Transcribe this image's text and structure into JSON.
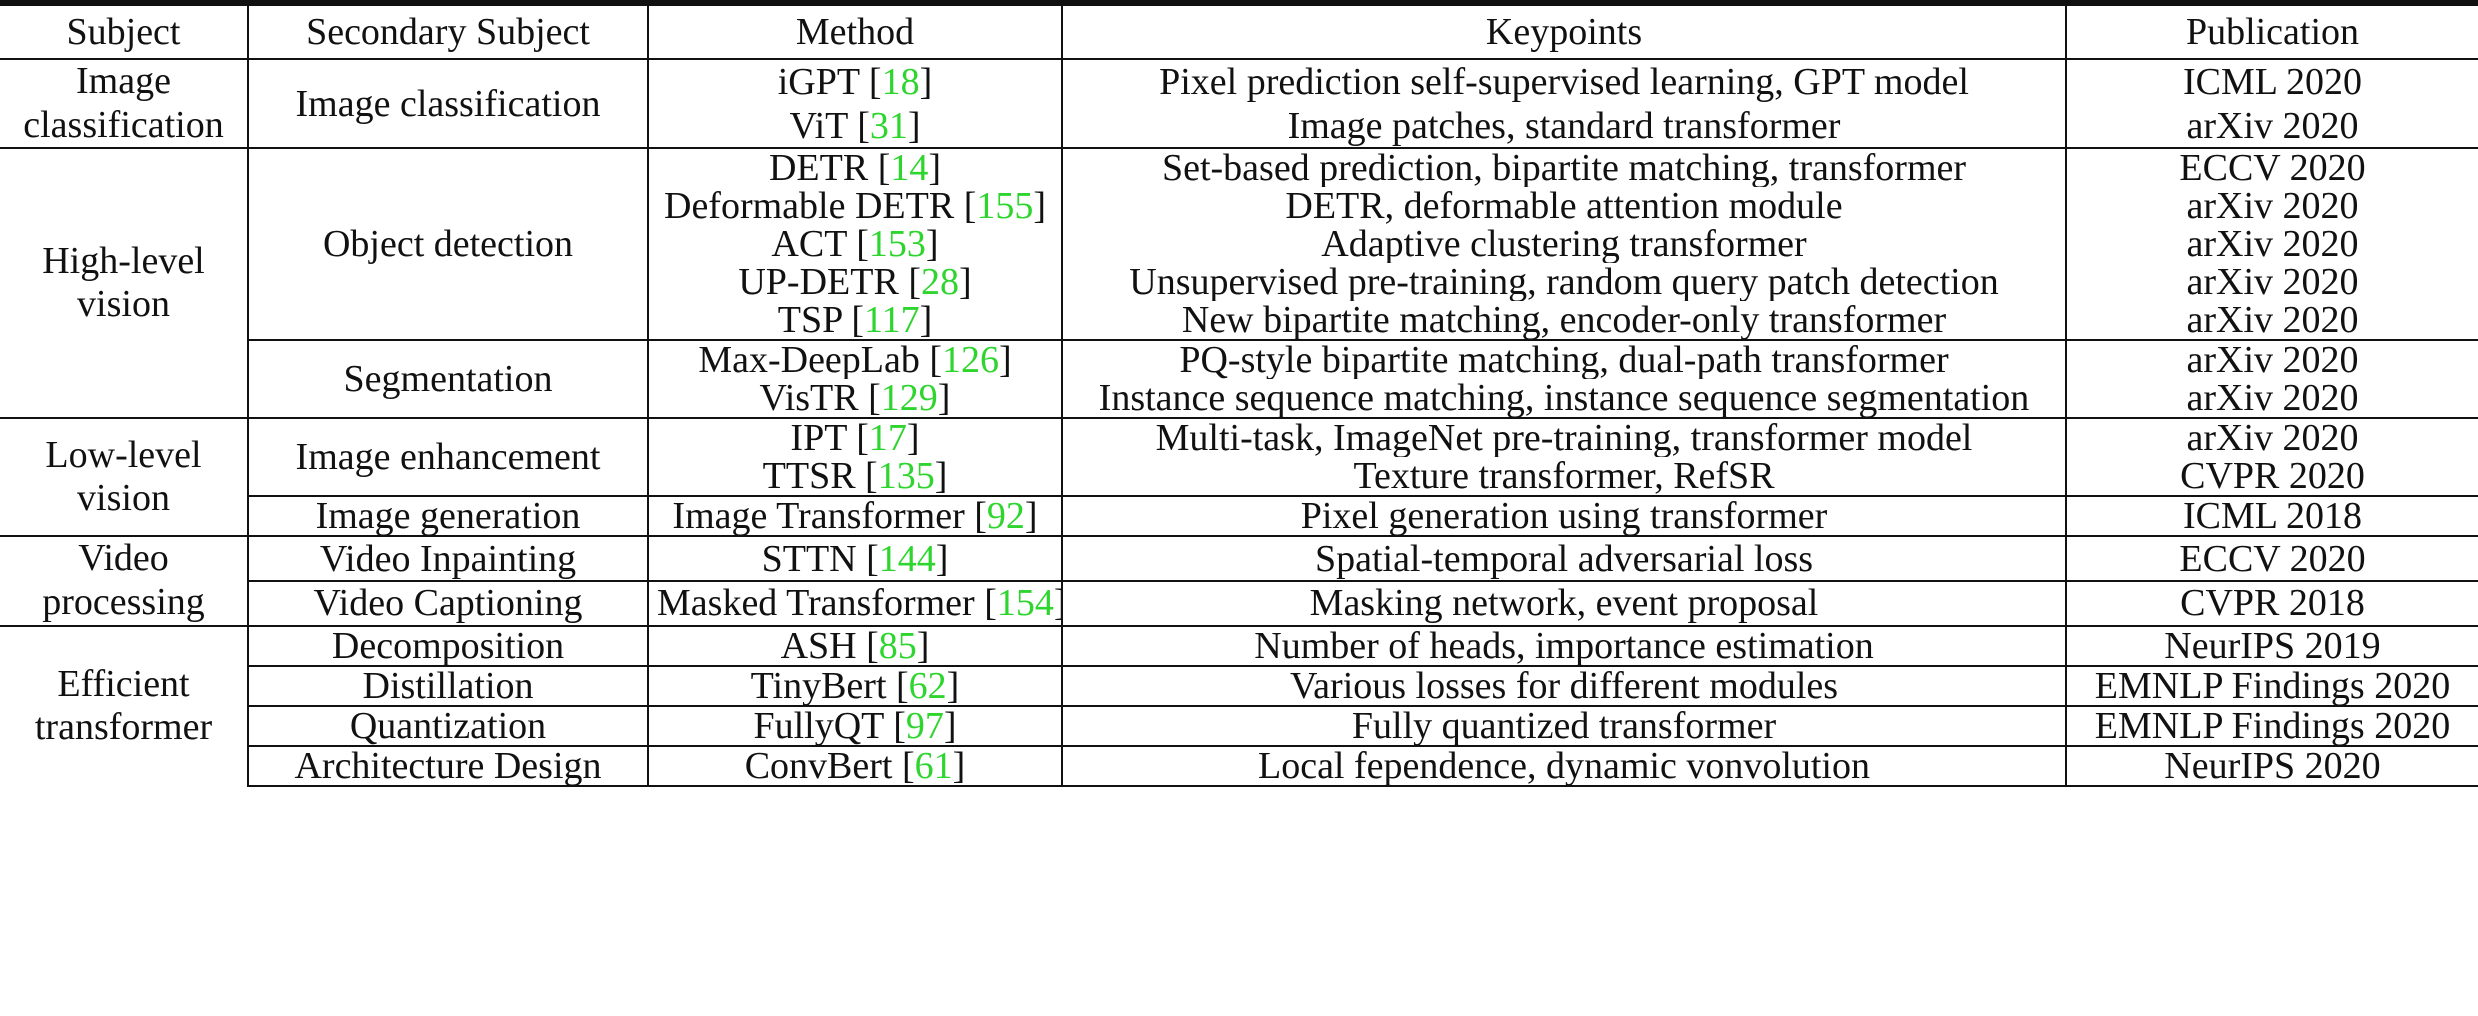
{
  "columns": [
    "Subject",
    "Secondary Subject",
    "Method",
    "Keypoints",
    "Publication"
  ],
  "cite_color": "#2fd52f",
  "groups": [
    {
      "subject": "Image classification",
      "subgroups": [
        {
          "secondary": "Image classification",
          "rows": [
            {
              "method": "iGPT",
              "ref": "18",
              "keypoints": "Pixel prediction self-supervised learning, GPT model",
              "publication": "ICML 2020"
            },
            {
              "method": "ViT",
              "ref": "31",
              "keypoints": "Image patches, standard transformer",
              "publication": "arXiv 2020"
            }
          ]
        }
      ]
    },
    {
      "subject": "High-level vision",
      "subgroups": [
        {
          "secondary": "Object detection",
          "rows": [
            {
              "method": "DETR",
              "ref": "14",
              "keypoints": "Set-based prediction, bipartite matching, transformer",
              "publication": "ECCV 2020"
            },
            {
              "method": "Deformable DETR",
              "ref": "155",
              "keypoints": "DETR, deformable attention module",
              "publication": "arXiv 2020"
            },
            {
              "method": "ACT",
              "ref": "153",
              "keypoints": "Adaptive clustering transformer",
              "publication": "arXiv 2020"
            },
            {
              "method": "UP-DETR",
              "ref": "28",
              "keypoints": "Unsupervised pre-training, random query patch detection",
              "publication": "arXiv 2020"
            },
            {
              "method": "TSP",
              "ref": "117",
              "keypoints": "New bipartite matching, encoder-only transformer",
              "publication": "arXiv 2020"
            }
          ]
        },
        {
          "secondary": "Segmentation",
          "rows": [
            {
              "method": "Max-DeepLab",
              "ref": "126",
              "keypoints": "PQ-style bipartite matching, dual-path transformer",
              "publication": "arXiv 2020"
            },
            {
              "method": "VisTR",
              "ref": "129",
              "keypoints": "Instance sequence matching, instance sequence segmentation",
              "publication": "arXiv 2020"
            }
          ]
        }
      ]
    },
    {
      "subject": "Low-level vision",
      "subgroups": [
        {
          "secondary": "Image enhancement",
          "rows": [
            {
              "method": "IPT",
              "ref": "17",
              "keypoints": "Multi-task, ImageNet pre-training, transformer model",
              "publication": "arXiv 2020"
            },
            {
              "method": "TTSR",
              "ref": "135",
              "keypoints": "Texture transformer, RefSR",
              "publication": "CVPR 2020"
            }
          ]
        },
        {
          "secondary": "Image generation",
          "rows": [
            {
              "method": "Image Transformer",
              "ref": "92",
              "keypoints": "Pixel generation using transformer",
              "publication": "ICML 2018"
            }
          ]
        }
      ]
    },
    {
      "subject": "Video processing",
      "subgroups": [
        {
          "secondary": "Video Inpainting",
          "rows": [
            {
              "method": "STTN",
              "ref": "144",
              "keypoints": "Spatial-temporal adversarial loss",
              "publication": "ECCV 2020"
            }
          ]
        },
        {
          "secondary": "Video Captioning",
          "rows": [
            {
              "method": "Masked Transformer",
              "ref": "154",
              "keypoints": "Masking network, event proposal",
              "publication": "CVPR 2018"
            }
          ]
        }
      ]
    },
    {
      "subject": "Efficient transformer",
      "subgroups": [
        {
          "secondary": "Decomposition",
          "rows": [
            {
              "method": "ASH",
              "ref": "85",
              "keypoints": "Number of heads, importance estimation",
              "publication": "NeurIPS 2019"
            }
          ]
        },
        {
          "secondary": "Distillation",
          "rows": [
            {
              "method": "TinyBert",
              "ref": "62",
              "keypoints": "Various losses for different modules",
              "publication": "EMNLP Findings 2020"
            }
          ]
        },
        {
          "secondary": "Quantization",
          "rows": [
            {
              "method": "FullyQT",
              "ref": "97",
              "keypoints": "Fully quantized transformer",
              "publication": "EMNLP Findings 2020"
            }
          ]
        },
        {
          "secondary": "Architecture Design",
          "rows": [
            {
              "method": "ConvBert",
              "ref": "61",
              "keypoints": "Local fependence, dynamic vonvolution",
              "publication": "NeurIPS 2020"
            }
          ]
        }
      ]
    }
  ]
}
